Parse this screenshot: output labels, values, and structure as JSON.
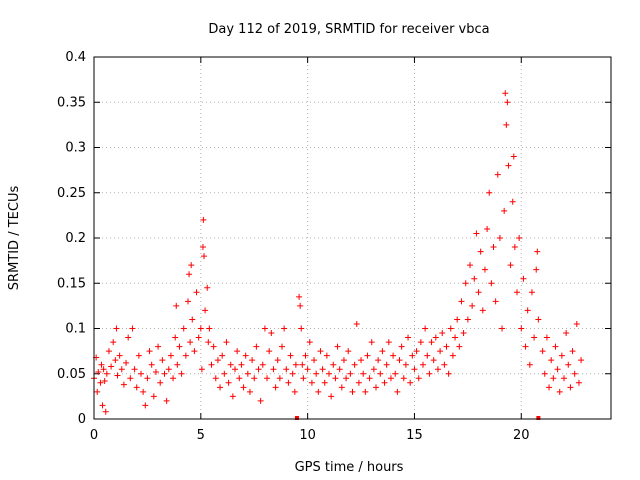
{
  "chart_data": {
    "type": "scatter",
    "title": "Day 112 of 2019, SRMTID for receiver vbca",
    "xlabel": "GPS time / hours",
    "ylabel": "SRMTID / TECUs",
    "xlim": [
      0,
      24.2
    ],
    "ylim": [
      0,
      0.4
    ],
    "xticks": [
      0,
      5,
      10,
      15,
      20
    ],
    "xtick_labels": [
      "0",
      "5",
      "10",
      "15",
      "20"
    ],
    "yticks": [
      0,
      0.05,
      0.1,
      0.15,
      0.2,
      0.25,
      0.3,
      0.35,
      0.4
    ],
    "ytick_labels": [
      "0",
      "0.05",
      "0.1",
      "0.15",
      "0.2",
      "0.25",
      "0.3",
      "0.35",
      "0.4"
    ],
    "grid": true,
    "marker": "+",
    "color": "#ff0000",
    "gap_marker_x": [
      9.5,
      20.8
    ],
    "series": [
      {
        "name": "SRMTID",
        "points": [
          [
            0.0,
            0.045
          ],
          [
            0.1,
            0.068
          ],
          [
            0.15,
            0.03
          ],
          [
            0.2,
            0.052
          ],
          [
            0.3,
            0.04
          ],
          [
            0.35,
            0.06
          ],
          [
            0.4,
            0.015
          ],
          [
            0.45,
            0.055
          ],
          [
            0.5,
            0.042
          ],
          [
            0.55,
            0.008
          ],
          [
            0.6,
            0.05
          ],
          [
            0.7,
            0.075
          ],
          [
            0.8,
            0.058
          ],
          [
            0.9,
            0.085
          ],
          [
            1.0,
            0.065
          ],
          [
            1.05,
            0.1
          ],
          [
            1.1,
            0.048
          ],
          [
            1.2,
            0.07
          ],
          [
            1.3,
            0.055
          ],
          [
            1.4,
            0.038
          ],
          [
            1.5,
            0.062
          ],
          [
            1.6,
            0.09
          ],
          [
            1.7,
            0.045
          ],
          [
            1.8,
            0.1
          ],
          [
            1.9,
            0.055
          ],
          [
            2.0,
            0.035
          ],
          [
            2.1,
            0.07
          ],
          [
            2.2,
            0.05
          ],
          [
            2.3,
            0.03
          ],
          [
            2.4,
            0.015
          ],
          [
            2.5,
            0.045
          ],
          [
            2.6,
            0.075
          ],
          [
            2.7,
            0.06
          ],
          [
            2.8,
            0.025
          ],
          [
            2.9,
            0.052
          ],
          [
            3.0,
            0.08
          ],
          [
            3.1,
            0.04
          ],
          [
            3.2,
            0.065
          ],
          [
            3.3,
            0.05
          ],
          [
            3.4,
            0.02
          ],
          [
            3.5,
            0.055
          ],
          [
            3.6,
            0.07
          ],
          [
            3.7,
            0.045
          ],
          [
            3.8,
            0.09
          ],
          [
            3.85,
            0.125
          ],
          [
            3.9,
            0.06
          ],
          [
            4.0,
            0.08
          ],
          [
            4.1,
            0.05
          ],
          [
            4.2,
            0.1
          ],
          [
            4.3,
            0.07
          ],
          [
            4.4,
            0.13
          ],
          [
            4.45,
            0.16
          ],
          [
            4.5,
            0.085
          ],
          [
            4.55,
            0.17
          ],
          [
            4.6,
            0.11
          ],
          [
            4.7,
            0.075
          ],
          [
            4.8,
            0.14
          ],
          [
            4.9,
            0.09
          ],
          [
            5.0,
            0.1
          ],
          [
            5.05,
            0.055
          ],
          [
            5.1,
            0.19
          ],
          [
            5.12,
            0.22
          ],
          [
            5.15,
            0.18
          ],
          [
            5.2,
            0.12
          ],
          [
            5.3,
            0.145
          ],
          [
            5.35,
            0.085
          ],
          [
            5.4,
            0.1
          ],
          [
            5.5,
            0.06
          ],
          [
            5.6,
            0.08
          ],
          [
            5.7,
            0.045
          ],
          [
            5.8,
            0.065
          ],
          [
            5.9,
            0.035
          ],
          [
            6.0,
            0.07
          ],
          [
            6.1,
            0.05
          ],
          [
            6.2,
            0.085
          ],
          [
            6.3,
            0.04
          ],
          [
            6.4,
            0.06
          ],
          [
            6.5,
            0.025
          ],
          [
            6.6,
            0.055
          ],
          [
            6.7,
            0.075
          ],
          [
            6.8,
            0.045
          ],
          [
            6.9,
            0.06
          ],
          [
            7.0,
            0.035
          ],
          [
            7.1,
            0.07
          ],
          [
            7.2,
            0.05
          ],
          [
            7.3,
            0.03
          ],
          [
            7.4,
            0.065
          ],
          [
            7.5,
            0.045
          ],
          [
            7.6,
            0.08
          ],
          [
            7.7,
            0.055
          ],
          [
            7.8,
            0.02
          ],
          [
            7.9,
            0.06
          ],
          [
            8.0,
            0.1
          ],
          [
            8.1,
            0.045
          ],
          [
            8.2,
            0.075
          ],
          [
            8.3,
            0.095
          ],
          [
            8.4,
            0.055
          ],
          [
            8.5,
            0.035
          ],
          [
            8.6,
            0.065
          ],
          [
            8.7,
            0.045
          ],
          [
            8.8,
            0.08
          ],
          [
            8.9,
            0.1
          ],
          [
            9.0,
            0.055
          ],
          [
            9.1,
            0.04
          ],
          [
            9.2,
            0.07
          ],
          [
            9.3,
            0.05
          ],
          [
            9.4,
            0.03
          ],
          [
            9.45,
            0.06
          ],
          [
            9.6,
            0.135
          ],
          [
            9.65,
            0.125
          ],
          [
            9.7,
            0.1
          ],
          [
            9.75,
            0.06
          ],
          [
            9.8,
            0.045
          ],
          [
            9.9,
            0.07
          ],
          [
            10.0,
            0.055
          ],
          [
            10.1,
            0.085
          ],
          [
            10.2,
            0.04
          ],
          [
            10.3,
            0.065
          ],
          [
            10.4,
            0.05
          ],
          [
            10.5,
            0.03
          ],
          [
            10.6,
            0.075
          ],
          [
            10.7,
            0.055
          ],
          [
            10.8,
            0.04
          ],
          [
            10.9,
            0.07
          ],
          [
            11.0,
            0.05
          ],
          [
            11.1,
            0.025
          ],
          [
            11.2,
            0.06
          ],
          [
            11.3,
            0.045
          ],
          [
            11.4,
            0.08
          ],
          [
            11.5,
            0.055
          ],
          [
            11.6,
            0.035
          ],
          [
            11.7,
            0.065
          ],
          [
            11.8,
            0.045
          ],
          [
            11.9,
            0.075
          ],
          [
            12.0,
            0.05
          ],
          [
            12.1,
            0.03
          ],
          [
            12.2,
            0.06
          ],
          [
            12.3,
            0.105
          ],
          [
            12.4,
            0.04
          ],
          [
            12.5,
            0.065
          ],
          [
            12.6,
            0.05
          ],
          [
            12.7,
            0.03
          ],
          [
            12.8,
            0.07
          ],
          [
            12.9,
            0.045
          ],
          [
            13.0,
            0.085
          ],
          [
            13.1,
            0.055
          ],
          [
            13.2,
            0.035
          ],
          [
            13.3,
            0.065
          ],
          [
            13.4,
            0.05
          ],
          [
            13.5,
            0.075
          ],
          [
            13.6,
            0.04
          ],
          [
            13.7,
            0.06
          ],
          [
            13.8,
            0.085
          ],
          [
            13.9,
            0.045
          ],
          [
            14.0,
            0.07
          ],
          [
            14.1,
            0.05
          ],
          [
            14.2,
            0.03
          ],
          [
            14.3,
            0.065
          ],
          [
            14.4,
            0.08
          ],
          [
            14.5,
            0.045
          ],
          [
            14.6,
            0.06
          ],
          [
            14.7,
            0.09
          ],
          [
            14.8,
            0.04
          ],
          [
            14.9,
            0.07
          ],
          [
            15.0,
            0.055
          ],
          [
            15.1,
            0.075
          ],
          [
            15.2,
            0.045
          ],
          [
            15.3,
            0.085
          ],
          [
            15.4,
            0.06
          ],
          [
            15.5,
            0.1
          ],
          [
            15.6,
            0.07
          ],
          [
            15.7,
            0.05
          ],
          [
            15.8,
            0.085
          ],
          [
            15.9,
            0.065
          ],
          [
            16.0,
            0.09
          ],
          [
            16.1,
            0.055
          ],
          [
            16.2,
            0.075
          ],
          [
            16.3,
            0.095
          ],
          [
            16.4,
            0.06
          ],
          [
            16.5,
            0.08
          ],
          [
            16.6,
            0.05
          ],
          [
            16.7,
            0.1
          ],
          [
            16.8,
            0.07
          ],
          [
            16.9,
            0.09
          ],
          [
            17.0,
            0.11
          ],
          [
            17.1,
            0.08
          ],
          [
            17.2,
            0.13
          ],
          [
            17.3,
            0.095
          ],
          [
            17.4,
            0.15
          ],
          [
            17.5,
            0.11
          ],
          [
            17.6,
            0.17
          ],
          [
            17.7,
            0.125
          ],
          [
            17.8,
            0.155
          ],
          [
            17.9,
            0.205
          ],
          [
            18.0,
            0.14
          ],
          [
            18.1,
            0.185
          ],
          [
            18.2,
            0.12
          ],
          [
            18.3,
            0.165
          ],
          [
            18.4,
            0.21
          ],
          [
            18.5,
            0.25
          ],
          [
            18.6,
            0.15
          ],
          [
            18.7,
            0.19
          ],
          [
            18.8,
            0.13
          ],
          [
            18.9,
            0.27
          ],
          [
            19.0,
            0.2
          ],
          [
            19.1,
            0.1
          ],
          [
            19.2,
            0.23
          ],
          [
            19.25,
            0.36
          ],
          [
            19.3,
            0.325
          ],
          [
            19.35,
            0.35
          ],
          [
            19.4,
            0.28
          ],
          [
            19.5,
            0.17
          ],
          [
            19.6,
            0.24
          ],
          [
            19.65,
            0.29
          ],
          [
            19.7,
            0.19
          ],
          [
            19.8,
            0.14
          ],
          [
            19.9,
            0.2
          ],
          [
            20.0,
            0.1
          ],
          [
            20.1,
            0.155
          ],
          [
            20.2,
            0.08
          ],
          [
            20.3,
            0.12
          ],
          [
            20.4,
            0.06
          ],
          [
            20.5,
            0.14
          ],
          [
            20.6,
            0.09
          ],
          [
            20.7,
            0.165
          ],
          [
            20.75,
            0.185
          ],
          [
            20.8,
            0.11
          ],
          [
            21.0,
            0.075
          ],
          [
            21.1,
            0.05
          ],
          [
            21.2,
            0.09
          ],
          [
            21.3,
            0.035
          ],
          [
            21.4,
            0.065
          ],
          [
            21.5,
            0.045
          ],
          [
            21.6,
            0.08
          ],
          [
            21.7,
            0.055
          ],
          [
            21.8,
            0.03
          ],
          [
            21.9,
            0.07
          ],
          [
            22.0,
            0.045
          ],
          [
            22.1,
            0.095
          ],
          [
            22.2,
            0.06
          ],
          [
            22.3,
            0.035
          ],
          [
            22.4,
            0.075
          ],
          [
            22.5,
            0.05
          ],
          [
            22.6,
            0.105
          ],
          [
            22.7,
            0.04
          ],
          [
            22.8,
            0.065
          ]
        ]
      }
    ]
  }
}
